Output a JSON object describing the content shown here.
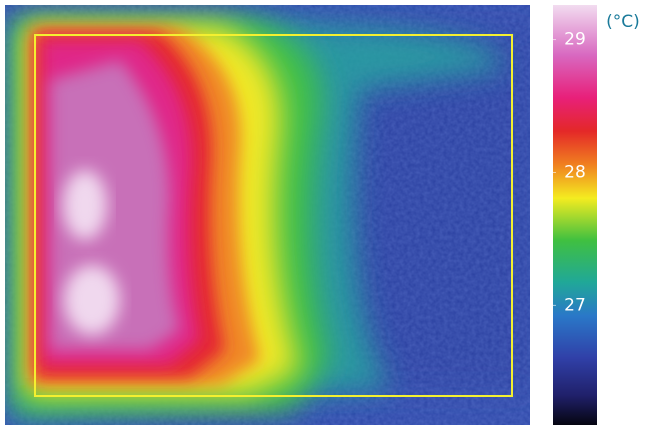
{
  "colorbar": {
    "unit": "(°C)",
    "range": [
      26.1,
      29.26
    ],
    "ticks": [
      27,
      28,
      29
    ]
  }
}
